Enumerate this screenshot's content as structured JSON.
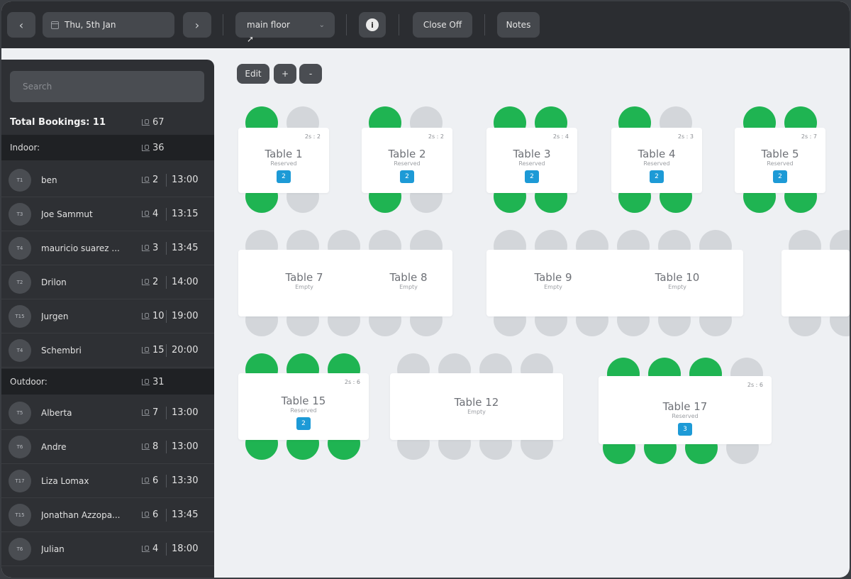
{
  "topbar": {
    "prev": "‹",
    "next": "›",
    "date": "Thu, 5th Jan",
    "floor": "main floor",
    "info": "i",
    "close_off": "Close Off",
    "notes": "Notes"
  },
  "sidebar": {
    "search_placeholder": "Search",
    "total_label": "Total Bookings: 11",
    "total_pax": "67",
    "sections": [
      {
        "label": "Indoor:",
        "pax": "36",
        "bookings": [
          {
            "avatar": "T1",
            "name": "ben",
            "pax": "2",
            "time": "13:00"
          },
          {
            "avatar": "T3",
            "name": "Joe Sammut",
            "pax": "4",
            "time": "13:15"
          },
          {
            "avatar": "T4",
            "name": "mauricio suarez ...",
            "pax": "3",
            "time": "13:45"
          },
          {
            "avatar": "T2",
            "name": "Drilon",
            "pax": "2",
            "time": "14:00"
          },
          {
            "avatar": "T15",
            "name": "Jurgen",
            "pax": "10",
            "time": "19:00"
          },
          {
            "avatar": "T4",
            "name": "Schembri",
            "pax": "15",
            "time": "20:00"
          }
        ]
      },
      {
        "label": "Outdoor:",
        "pax": "31",
        "bookings": [
          {
            "avatar": "T5",
            "name": "Alberta",
            "pax": "7",
            "time": "13:00"
          },
          {
            "avatar": "T6",
            "name": "Andre",
            "pax": "8",
            "time": "13:00"
          },
          {
            "avatar": "T17",
            "name": "Liza Lomax",
            "pax": "6",
            "time": "13:30"
          },
          {
            "avatar": "T15",
            "name": "Jonathan Azzopa...",
            "pax": "6",
            "time": "13:45"
          },
          {
            "avatar": "T6",
            "name": "Julian",
            "pax": "4",
            "time": "18:00"
          }
        ]
      }
    ]
  },
  "floor": {
    "edit": "Edit",
    "zoom_in": "+",
    "zoom_out": "-",
    "tables": [
      {
        "name": "Table 1",
        "status": "Reserved",
        "cap": "2s : 2",
        "badge": "2"
      },
      {
        "name": "Table 2",
        "status": "Reserved",
        "cap": "2s : 2",
        "badge": "2"
      },
      {
        "name": "Table 3",
        "status": "Reserved",
        "cap": "2s : 4",
        "badge": "2"
      },
      {
        "name": "Table 4",
        "status": "Reserved",
        "cap": "2s : 3",
        "badge": "2"
      },
      {
        "name": "Table 5",
        "status": "Reserved",
        "cap": "2s : 7",
        "badge": "2"
      },
      {
        "name": "Table 7",
        "status": "Empty"
      },
      {
        "name": "Table 8",
        "status": "Empty"
      },
      {
        "name": "Table 9",
        "status": "Empty"
      },
      {
        "name": "Table 10",
        "status": "Empty"
      },
      {
        "name": "Table 15",
        "status": "Reserved",
        "cap": "2s : 6",
        "badge": "2"
      },
      {
        "name": "Table 12",
        "status": "Empty"
      },
      {
        "name": "Table 17",
        "status": "Reserved",
        "cap": "2s : 6",
        "badge": "3"
      }
    ]
  },
  "colors": {
    "seat_occupied": "#1fb452",
    "seat_free": "#d3d6da",
    "badge": "#1d9ad6"
  }
}
